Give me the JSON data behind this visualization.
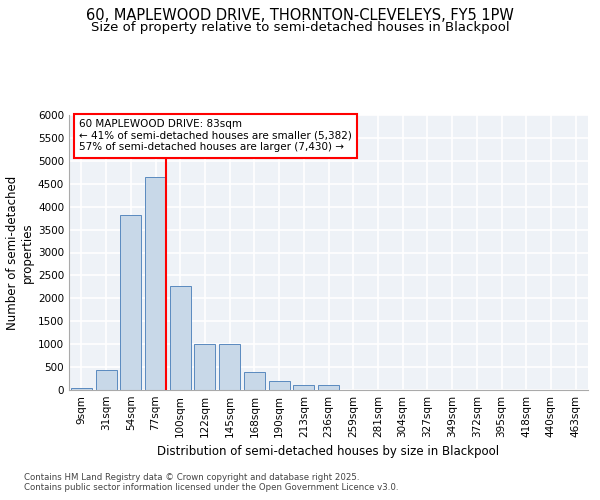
{
  "title_line1": "60, MAPLEWOOD DRIVE, THORNTON-CLEVELEYS, FY5 1PW",
  "title_line2": "Size of property relative to semi-detached houses in Blackpool",
  "xlabel": "Distribution of semi-detached houses by size in Blackpool",
  "ylabel": "Number of semi-detached\nproperties",
  "categories": [
    "9sqm",
    "31sqm",
    "54sqm",
    "77sqm",
    "100sqm",
    "122sqm",
    "145sqm",
    "168sqm",
    "190sqm",
    "213sqm",
    "236sqm",
    "259sqm",
    "281sqm",
    "304sqm",
    "327sqm",
    "349sqm",
    "372sqm",
    "395sqm",
    "418sqm",
    "440sqm",
    "463sqm"
  ],
  "values": [
    50,
    430,
    3820,
    4650,
    2280,
    1000,
    1000,
    390,
    200,
    120,
    110,
    0,
    0,
    0,
    0,
    0,
    0,
    0,
    0,
    0,
    0
  ],
  "bar_color": "#c8d8e8",
  "bar_edge_color": "#5a8abf",
  "highlight_box_text": "60 MAPLEWOOD DRIVE: 83sqm\n← 41% of semi-detached houses are smaller (5,382)\n57% of semi-detached houses are larger (7,430) →",
  "ylim": [
    0,
    6000
  ],
  "yticks": [
    0,
    500,
    1000,
    1500,
    2000,
    2500,
    3000,
    3500,
    4000,
    4500,
    5000,
    5500,
    6000
  ],
  "footnote": "Contains HM Land Registry data © Crown copyright and database right 2025.\nContains public sector information licensed under the Open Government Licence v3.0.",
  "bg_color": "#eef2f7",
  "grid_color": "#ffffff",
  "title_fontsize": 10.5,
  "subtitle_fontsize": 9.5,
  "axis_label_fontsize": 8.5,
  "tick_fontsize": 7.5,
  "annot_fontsize": 7.5
}
